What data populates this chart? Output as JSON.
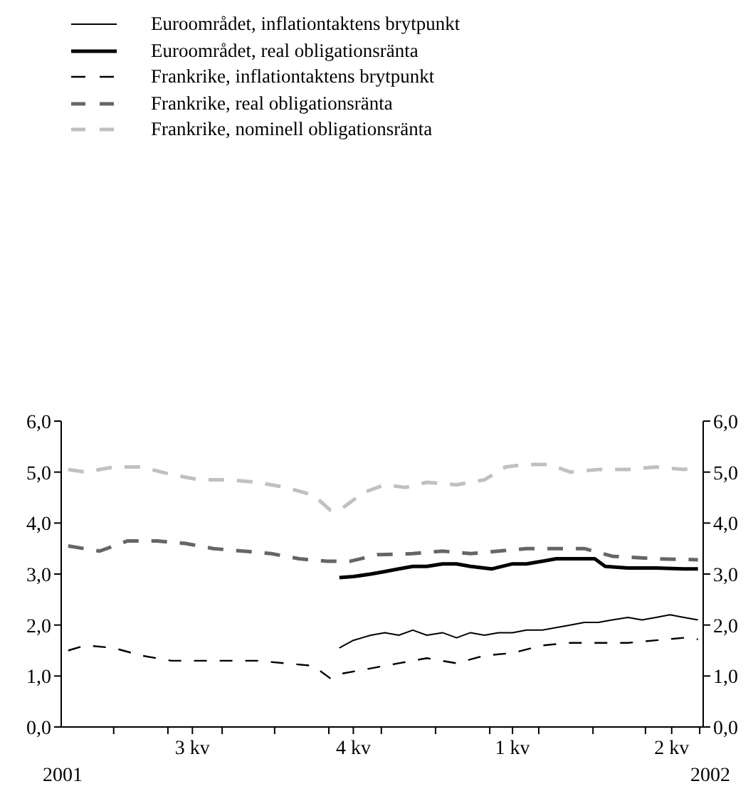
{
  "chart_data": {
    "type": "line",
    "legend": "top",
    "grid": false,
    "marker": "none",
    "xlim": [
      "2001-06-01",
      "2002-06-03"
    ],
    "xticks": [
      {
        "value": "2001-07-01",
        "label": null
      },
      {
        "value": "2001-08-01",
        "label": null
      },
      {
        "value": "2001-08-15",
        "label": "3 kv"
      },
      {
        "value": "2001-09-01",
        "label": null
      },
      {
        "value": "2001-10-01",
        "label": null
      },
      {
        "value": "2001-11-01",
        "label": null
      },
      {
        "value": "2001-11-15",
        "label": "4 kv"
      },
      {
        "value": "2001-12-01",
        "label": null
      },
      {
        "value": "2002-01-01",
        "label": null
      },
      {
        "value": "2002-02-01",
        "label": null
      },
      {
        "value": "2002-02-14",
        "label": "1 kv"
      },
      {
        "value": "2002-03-01",
        "label": null
      },
      {
        "value": "2002-04-01",
        "label": null
      },
      {
        "value": "2002-05-01",
        "label": null
      },
      {
        "value": "2002-05-16",
        "label": "2 kv"
      },
      {
        "value": "2002-06-01",
        "label": null
      }
    ],
    "ylim": [
      0,
      6
    ],
    "yticks": [
      {
        "value": 0,
        "label": "0,0"
      },
      {
        "value": 1,
        "label": "1,0"
      },
      {
        "value": 2,
        "label": "2,0"
      },
      {
        "value": 3,
        "label": "3,0"
      },
      {
        "value": 4,
        "label": "4,0"
      },
      {
        "value": 5,
        "label": "5,0"
      },
      {
        "value": 6,
        "label": "6,0"
      }
    ],
    "y2lim": [
      0,
      6
    ],
    "y2ticks": [
      {
        "value": 0,
        "label": "0,0"
      },
      {
        "value": 1,
        "label": "1,0"
      },
      {
        "value": 2,
        "label": "2,0"
      },
      {
        "value": 3,
        "label": "3,0"
      },
      {
        "value": 4,
        "label": "4,0"
      },
      {
        "value": 5,
        "label": "5,0"
      },
      {
        "value": 6,
        "label": "6,0"
      }
    ],
    "annotations": [
      "2001",
      "2002"
    ],
    "series": [
      {
        "name": "Euroområdet, inflationtaktens brytpunkt",
        "color": "#000000",
        "line_style": "solid",
        "x": [
          "2001-11-07",
          "2001-11-15",
          "2001-11-25",
          "2001-12-03",
          "2001-12-11",
          "2001-12-19",
          "2001-12-27",
          "2002-01-05",
          "2002-01-13",
          "2002-01-21",
          "2002-01-29",
          "2002-02-06",
          "2002-02-14",
          "2002-02-22",
          "2002-03-03",
          "2002-03-11",
          "2002-03-19",
          "2002-03-27",
          "2002-04-04",
          "2002-04-12",
          "2002-04-21",
          "2002-04-29",
          "2002-05-07",
          "2002-05-15",
          "2002-05-23",
          "2002-05-31"
        ],
        "values": [
          1.55,
          1.7,
          1.8,
          1.85,
          1.8,
          1.9,
          1.8,
          1.85,
          1.75,
          1.85,
          1.8,
          1.85,
          1.85,
          1.9,
          1.9,
          1.95,
          2.0,
          2.05,
          2.05,
          2.1,
          2.15,
          2.1,
          2.15,
          2.2,
          2.15,
          2.1
        ]
      },
      {
        "name": "Euroområdet, real obligationsränta",
        "color": "#000000",
        "line_style": "solid",
        "x": [
          "2001-11-07",
          "2001-11-15",
          "2001-11-25",
          "2001-12-03",
          "2001-12-11",
          "2001-12-19",
          "2001-12-27",
          "2002-01-05",
          "2002-01-13",
          "2002-01-21",
          "2002-02-02",
          "2002-02-14",
          "2002-02-22",
          "2002-03-03",
          "2002-03-11",
          "2002-03-19",
          "2002-03-27",
          "2002-04-02",
          "2002-04-08",
          "2002-04-21",
          "2002-05-07",
          "2002-05-23",
          "2002-05-31"
        ],
        "values": [
          2.93,
          2.95,
          3.0,
          3.05,
          3.1,
          3.15,
          3.15,
          3.2,
          3.2,
          3.15,
          3.1,
          3.2,
          3.2,
          3.25,
          3.3,
          3.3,
          3.3,
          3.3,
          3.15,
          3.12,
          3.12,
          3.1,
          3.1
        ]
      },
      {
        "name": "Frankrike, inflationtaktens brytpunkt",
        "color": "#000000",
        "line_style": "dashed",
        "x": [
          "2001-06-05",
          "2001-06-15",
          "2001-07-01",
          "2001-07-17",
          "2001-08-03",
          "2001-08-19",
          "2001-09-04",
          "2001-09-21",
          "2001-10-07",
          "2001-10-23",
          "2001-11-02",
          "2001-11-09",
          "2001-11-25",
          "2001-12-11",
          "2001-12-27",
          "2002-01-13",
          "2002-01-29",
          "2002-02-14",
          "2002-03-03",
          "2002-03-19",
          "2002-04-04",
          "2002-04-21",
          "2002-05-07",
          "2002-05-23",
          "2002-05-31"
        ],
        "values": [
          1.5,
          1.6,
          1.55,
          1.4,
          1.3,
          1.3,
          1.3,
          1.3,
          1.25,
          1.2,
          0.95,
          1.05,
          1.15,
          1.25,
          1.35,
          1.25,
          1.4,
          1.45,
          1.6,
          1.65,
          1.65,
          1.65,
          1.7,
          1.75,
          1.72
        ]
      },
      {
        "name": "Frankrike, real obligationsränta",
        "color": "#666666",
        "line_style": "dashed",
        "x": [
          "2001-06-05",
          "2001-06-23",
          "2001-07-09",
          "2001-07-26",
          "2001-08-11",
          "2001-08-27",
          "2001-09-13",
          "2001-09-29",
          "2001-10-15",
          "2001-10-31",
          "2001-11-13",
          "2001-11-29",
          "2001-12-19",
          "2002-01-05",
          "2002-01-21",
          "2002-02-06",
          "2002-02-22",
          "2002-03-11",
          "2002-03-27",
          "2002-04-12",
          "2002-05-07",
          "2002-05-31"
        ],
        "values": [
          3.55,
          3.45,
          3.65,
          3.65,
          3.6,
          3.5,
          3.45,
          3.4,
          3.3,
          3.25,
          3.25,
          3.38,
          3.4,
          3.45,
          3.4,
          3.45,
          3.5,
          3.5,
          3.5,
          3.35,
          3.3,
          3.28
        ]
      },
      {
        "name": "Frankrike, nominell obligationsränta",
        "color": "#c0c0c0",
        "line_style": "dashed",
        "x": [
          "2001-06-05",
          "2001-06-15",
          "2001-07-01",
          "2001-07-17",
          "2001-08-03",
          "2001-08-19",
          "2001-09-04",
          "2001-09-21",
          "2001-10-07",
          "2001-10-23",
          "2001-11-02",
          "2001-11-09",
          "2001-11-21",
          "2001-12-03",
          "2001-12-15",
          "2001-12-27",
          "2002-01-13",
          "2002-01-29",
          "2002-02-10",
          "2002-02-22",
          "2002-03-07",
          "2002-03-19",
          "2002-04-04",
          "2002-04-21",
          "2002-05-07",
          "2002-05-23",
          "2002-05-31"
        ],
        "values": [
          5.05,
          5.0,
          5.1,
          5.1,
          4.95,
          4.85,
          4.85,
          4.8,
          4.7,
          4.55,
          4.25,
          4.3,
          4.6,
          4.75,
          4.7,
          4.8,
          4.75,
          4.85,
          5.1,
          5.15,
          5.15,
          5.0,
          5.05,
          5.05,
          5.1,
          5.05,
          5.1
        ]
      }
    ]
  }
}
